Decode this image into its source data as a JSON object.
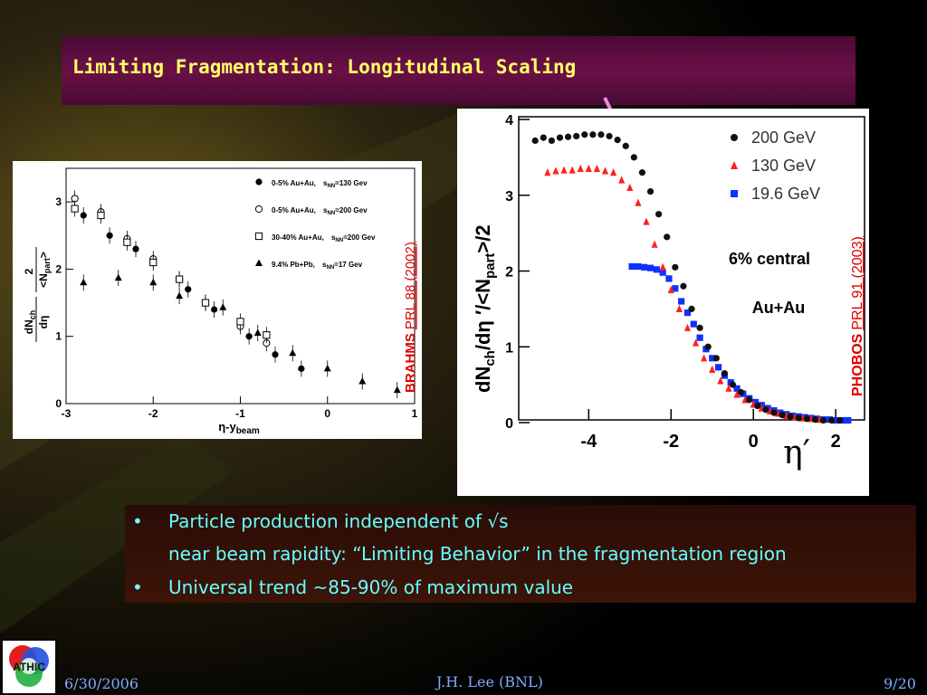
{
  "title": "Limiting Fragmentation: Longitudinal Scaling",
  "brahms_chart": {
    "title": "",
    "ylabel_num": "dN",
    "ylabel_num_sub": "ch",
    "ylabel_den": "dη",
    "ylabel_factor_num": "2",
    "ylabel_factor_den": "<N",
    "ylabel_factor_den_sub": "part",
    "ylabel_factor_den_end": ">",
    "xlabel_main": "η-y",
    "xlabel_sub": "beam",
    "x_ticks": [
      "-3",
      "-2",
      "-1",
      "0",
      "1"
    ],
    "y_ticks": [
      "0",
      "1",
      "2",
      "3"
    ],
    "side_label_exp": "BRAHMS",
    "side_label_ref": "PRL 88 (2002)",
    "legend": [
      {
        "pre": "0-5% Au+Au,",
        "sqrt": "s",
        "sub": "NN",
        "post": "=130 Gev",
        "marker": "filled-circle"
      },
      {
        "pre": "0-5% Au+Au,",
        "sqrt": "s",
        "sub": "NN",
        "post": "=200 Gev",
        "marker": "open-circle"
      },
      {
        "pre": "30-40% Au+Au,",
        "sqrt": "s",
        "sub": "NN",
        "post": "=200 Gev",
        "marker": "open-square"
      },
      {
        "pre": "9.4% Pb+Pb,",
        "sqrt": "s",
        "sub": "NN",
        "post": "=17 Gev",
        "marker": "filled-triangle"
      }
    ]
  },
  "phobos_chart": {
    "title": "",
    "ylabel_a": "dN",
    "ylabel_a_sub": "ch",
    "ylabel_b": "/dη ′/<N",
    "ylabel_b_sub": "part",
    "ylabel_c": ">/2",
    "xlabel": "η′",
    "x_ticks": [
      "-4",
      "-2",
      "0",
      "2"
    ],
    "y_ticks": [
      "0",
      "1",
      "2",
      "3",
      "4"
    ],
    "annotation_1": "6% central",
    "annotation_2": "Au+Au",
    "side_label_exp": "PHOBOS",
    "side_label_ref": "PRL 91 (2003)",
    "legend": [
      {
        "label": "200 GeV",
        "color": "#111111",
        "marker": "circle"
      },
      {
        "label": "130 GeV",
        "color": "#ff2020",
        "marker": "triangle"
      },
      {
        "label": "19.6 GeV",
        "color": "#1030ff",
        "marker": "square"
      }
    ]
  },
  "chart_data": [
    {
      "type": "scatter",
      "xlabel": "η-y beam",
      "ylabel": "dN/dη 2/<Npart>",
      "xlim": [
        -3,
        1
      ],
      "ylim": [
        0,
        3.5
      ],
      "series": [
        {
          "name": "0-5% Au+Au, √sNN=130 Gev",
          "marker": "filled-circle",
          "x": [
            -2.8,
            -2.5,
            -2.2,
            -1.6,
            -1.3,
            -0.9,
            -0.6,
            -0.3
          ],
          "y": [
            2.8,
            2.5,
            2.3,
            1.7,
            1.4,
            1.0,
            0.73,
            0.52
          ]
        },
        {
          "name": "0-5% Au+Au, √sNN=200 Gev",
          "marker": "open-circle",
          "x": [
            -2.9,
            -2.6,
            -2.3,
            -2.0,
            -1.7,
            -1.4,
            -1.0,
            -0.7
          ],
          "y": [
            3.05,
            2.85,
            2.45,
            2.15,
            1.85,
            1.5,
            1.15,
            0.9
          ]
        },
        {
          "name": "30-40% Au+Au, √sNN=200 Gev",
          "marker": "open-square",
          "x": [
            -2.9,
            -2.6,
            -2.3,
            -2.0,
            -1.7,
            -1.4,
            -1.0,
            -0.7
          ],
          "y": [
            2.9,
            2.8,
            2.4,
            2.1,
            1.85,
            1.5,
            1.22,
            1.02
          ]
        },
        {
          "name": "9.4% Pb+Pb, √sNN=17 Gev",
          "marker": "filled-triangle",
          "x": [
            -2.8,
            -2.4,
            -2.0,
            -1.7,
            -1.2,
            -0.8,
            -0.4,
            0.0,
            0.4,
            0.8
          ],
          "y": [
            1.8,
            1.87,
            1.8,
            1.6,
            1.43,
            1.05,
            0.75,
            0.52,
            0.33,
            0.2
          ]
        }
      ]
    },
    {
      "type": "scatter",
      "xlabel": "η′",
      "ylabel": "dNch/dη′/<Npart>/2",
      "xlim": [
        -5.7,
        2.7
      ],
      "ylim": [
        0,
        4
      ],
      "series": [
        {
          "name": "200 GeV",
          "color": "#111111",
          "x": [
            -5.3,
            -5.1,
            -4.9,
            -4.7,
            -4.5,
            -4.3,
            -4.1,
            -3.9,
            -3.7,
            -3.5,
            -3.3,
            -3.1,
            -2.9,
            -2.7,
            -2.5,
            -2.3,
            -2.1,
            -1.9,
            -1.7,
            -1.5,
            -1.3,
            -1.1,
            -0.9,
            -0.7,
            -0.5,
            -0.3,
            -0.1,
            0.1,
            0.3,
            0.5,
            0.7,
            0.9,
            1.1,
            1.3,
            1.5,
            1.7,
            1.9,
            2.1
          ],
          "y": [
            3.72,
            3.76,
            3.72,
            3.76,
            3.77,
            3.78,
            3.8,
            3.8,
            3.8,
            3.78,
            3.73,
            3.65,
            3.5,
            3.3,
            3.05,
            2.75,
            2.45,
            2.05,
            1.8,
            1.5,
            1.25,
            1.0,
            0.85,
            0.65,
            0.5,
            0.4,
            0.3,
            0.22,
            0.17,
            0.13,
            0.1,
            0.08,
            0.06,
            0.05,
            0.04,
            0.03,
            0.03,
            0.03
          ]
        },
        {
          "name": "130 GeV",
          "color": "#ff2020",
          "x": [
            -5.0,
            -4.8,
            -4.6,
            -4.4,
            -4.2,
            -4.0,
            -3.8,
            -3.6,
            -3.4,
            -3.2,
            -3.0,
            -2.8,
            -2.6,
            -2.4,
            -2.2,
            -2.0,
            -1.8,
            -1.6,
            -1.4,
            -1.2,
            -1.0,
            -0.8,
            -0.6,
            -0.4,
            -0.2,
            0.0,
            0.2,
            0.4,
            0.6,
            0.8,
            1.0,
            1.2,
            1.4,
            1.6
          ],
          "y": [
            3.3,
            3.32,
            3.33,
            3.33,
            3.35,
            3.35,
            3.35,
            3.32,
            3.3,
            3.2,
            3.1,
            2.9,
            2.65,
            2.35,
            2.05,
            1.75,
            1.5,
            1.25,
            1.05,
            0.85,
            0.7,
            0.55,
            0.45,
            0.37,
            0.3,
            0.24,
            0.19,
            0.15,
            0.12,
            0.09,
            0.07,
            0.06,
            0.05,
            0.04
          ]
        },
        {
          "name": "19.6 GeV",
          "color": "#1030ff",
          "x": [
            -2.95,
            -2.8,
            -2.65,
            -2.5,
            -2.35,
            -2.2,
            -2.05,
            -1.9,
            -1.75,
            -1.6,
            -1.45,
            -1.3,
            -1.15,
            -1.0,
            -0.85,
            -0.7,
            -0.55,
            -0.4,
            -0.25,
            -0.1,
            0.05,
            0.2,
            0.35,
            0.5,
            0.65,
            0.8,
            0.95,
            1.1,
            1.25,
            1.4,
            1.55,
            1.7,
            1.85,
            2.0,
            2.15,
            2.3
          ],
          "y": [
            2.06,
            2.06,
            2.05,
            2.04,
            2.02,
            1.98,
            1.9,
            1.77,
            1.6,
            1.45,
            1.3,
            1.12,
            0.97,
            0.85,
            0.73,
            0.62,
            0.53,
            0.45,
            0.38,
            0.32,
            0.27,
            0.23,
            0.19,
            0.16,
            0.13,
            0.11,
            0.09,
            0.08,
            0.07,
            0.06,
            0.05,
            0.04,
            0.04,
            0.03,
            0.03,
            0.03
          ]
        }
      ]
    }
  ],
  "bullets": [
    {
      "marker": "•",
      "text": "Particle production independent of √s"
    },
    {
      "marker": "",
      "text": "near beam rapidity:  “Limiting Behavior” in the fragmentation region"
    },
    {
      "marker": "•",
      "text": "Universal trend ~85-90% of maximum value"
    }
  ],
  "footer": {
    "date": "6/30/2006",
    "author": "J.H. Lee (BNL)",
    "page": "9/20",
    "logo_text": "ATHIC"
  }
}
